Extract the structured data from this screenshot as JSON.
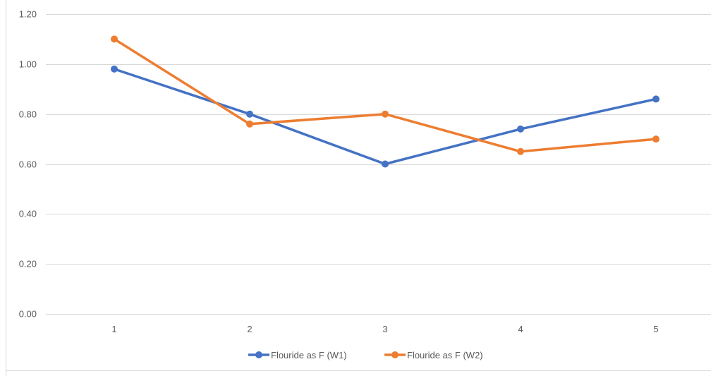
{
  "chart_data": {
    "type": "line",
    "title": "",
    "xlabel": "",
    "ylabel": "",
    "categories": [
      "1",
      "2",
      "3",
      "4",
      "5"
    ],
    "ylim": [
      0,
      1.2
    ],
    "yticks": [
      "0.00",
      "0.20",
      "0.40",
      "0.60",
      "0.80",
      "1.00",
      "1.20"
    ],
    "ytick_values": [
      0,
      0.2,
      0.4,
      0.6,
      0.8,
      1.0,
      1.2
    ],
    "grid": true,
    "legend_position": "bottom",
    "series": [
      {
        "name": "Flouride as F (W1)",
        "color": "#4472C4",
        "values": [
          0.98,
          0.8,
          0.6,
          0.74,
          0.86
        ]
      },
      {
        "name": "Flouride as F (W2)",
        "color": "#ED7D31",
        "values": [
          1.1,
          0.76,
          0.8,
          0.65,
          0.7
        ]
      }
    ]
  }
}
